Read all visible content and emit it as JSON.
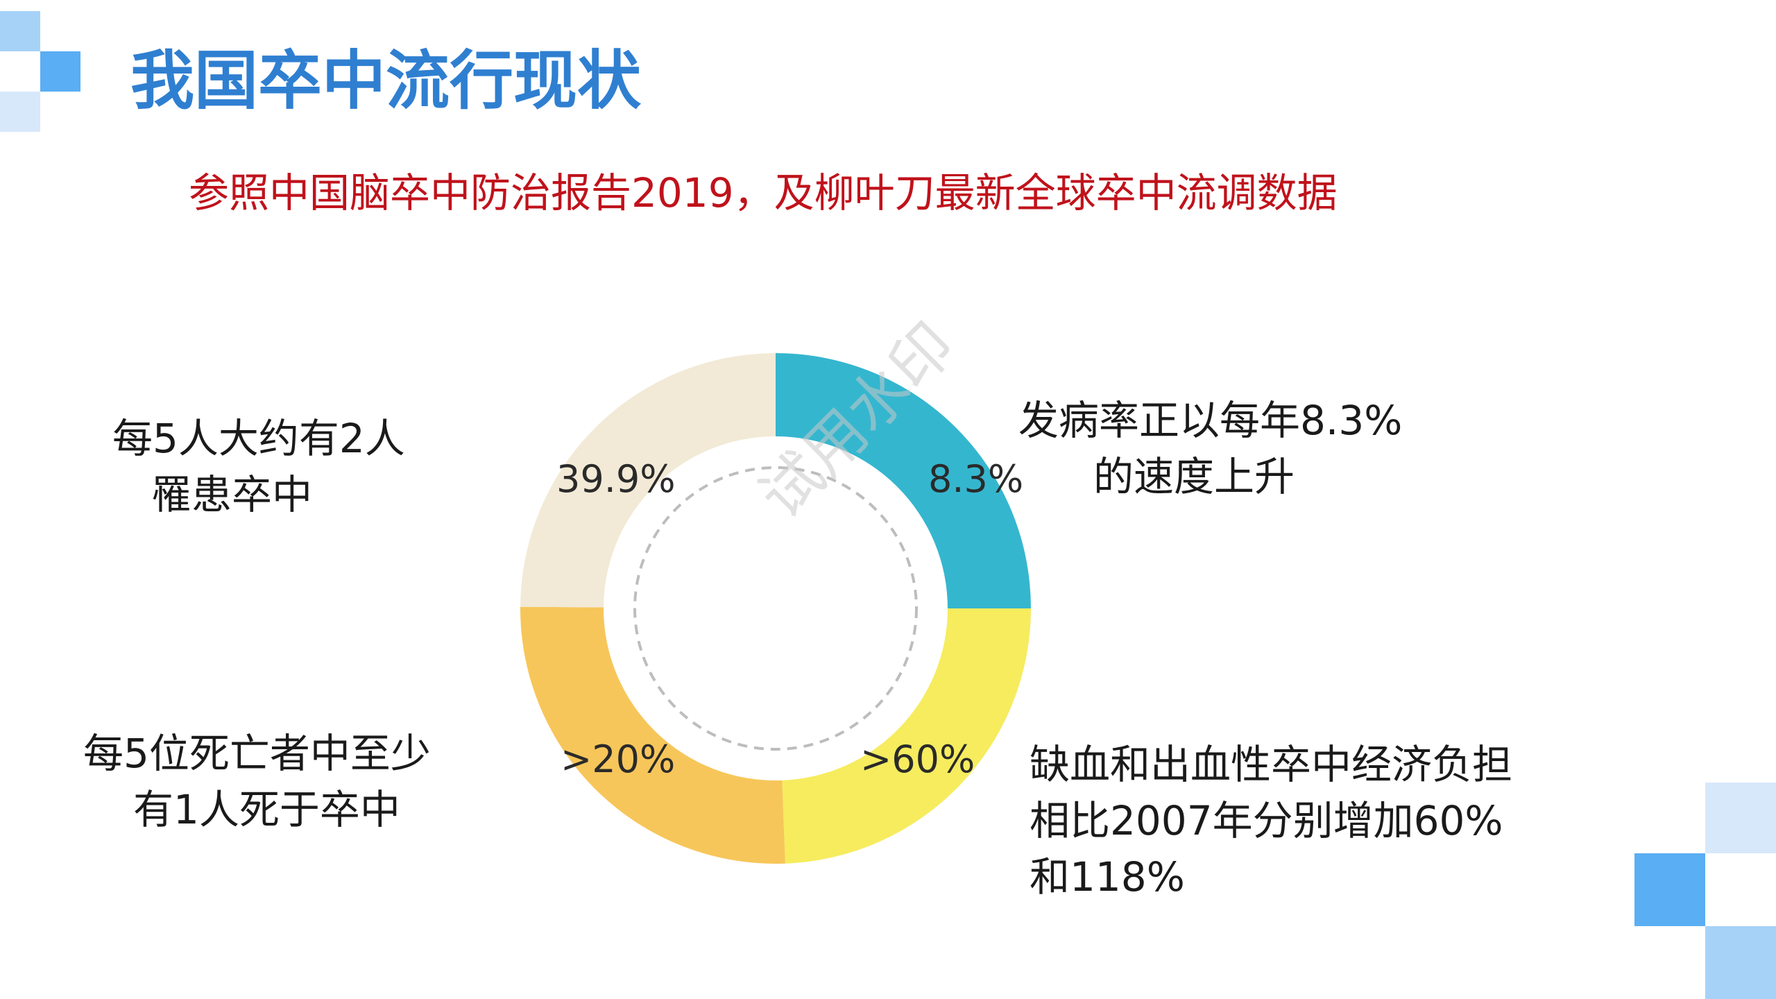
{
  "title": "我国卒中流行现状",
  "subtitle": "参照中国脑卒中防治报告2019，及柳叶刀最新全球卒中流调数据",
  "watermark": "试用水印",
  "colors": {
    "title": "#2f7fd1",
    "subtitle": "#c0121b",
    "decor_dark": "#5aaef3",
    "decor_light": "#d8e8fb",
    "decor_mid": "#a6d2f8"
  },
  "segments": [
    {
      "label": "8.3%",
      "value": 25.0,
      "color": "#35b6cf"
    },
    {
      "label": ">60%",
      "value": 24.4,
      "color": "#f6ec5e"
    },
    {
      "label": ">20%",
      "value": 25.7,
      "color": "#f7c65a"
    },
    {
      "label": "39.9%",
      "value": 24.9,
      "color": "#f2ead6"
    }
  ],
  "captions": {
    "top_right": {
      "lines": [
        "发病率正以每年8.3%",
        "的速度上升"
      ]
    },
    "bottom_right": {
      "lines": [
        "缺血和出血性卒中经济负担",
        "相比2007年分别增加60%",
        "和118%"
      ]
    },
    "bottom_left": {
      "lines": [
        "每5位死亡者中至少",
        "有1人死于卒中"
      ]
    },
    "top_left": {
      "lines": [
        "每5人大约有2人",
        "罹患卒中"
      ]
    }
  }
}
